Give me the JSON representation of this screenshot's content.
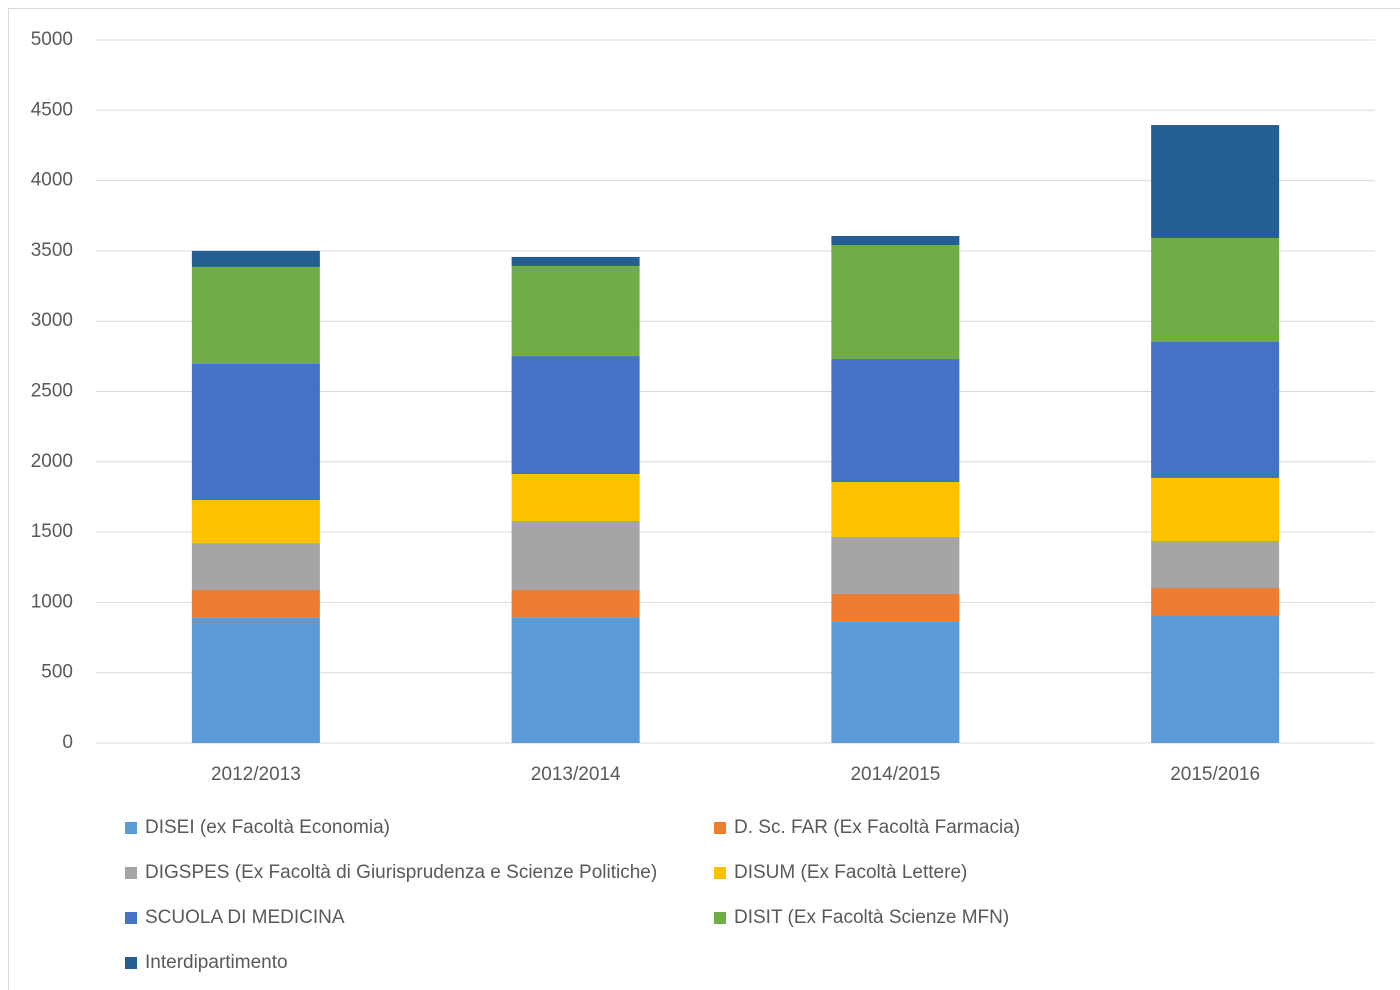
{
  "chart_data": {
    "type": "stacked_bar",
    "categories": [
      "2012/2013",
      "2013/2014",
      "2014/2015",
      "2015/2016"
    ],
    "series": [
      {
        "name": "DISEI (ex Facoltà Economia)",
        "color": "#5b9bd5",
        "values": [
          890,
          895,
          861,
          903
        ]
      },
      {
        "name": "D. Sc. FAR (Ex Facoltà Farmacia)",
        "color": "#ed7d31",
        "values": [
          198,
          193,
          199,
          199
        ]
      },
      {
        "name": "DIGSPES (Ex Facoltà di Giurisprudenza e Scienze Politiche)",
        "color": "#a5a5a5",
        "values": [
          334,
          491,
          405,
          335
        ]
      },
      {
        "name": "DISUM (Ex Facoltà Lettere)",
        "color": "#ffc000",
        "values": [
          306,
          334,
          391,
          448
        ]
      },
      {
        "name": "SCUOLA DI MEDICINA",
        "color": "#4472c4",
        "values": [
          968,
          839,
          875,
          967
        ]
      },
      {
        "name": "DISIT (Ex Facoltà Scienze MFN)",
        "color": "#70ad47",
        "values": [
          690,
          641,
          811,
          740
        ]
      },
      {
        "name": "Interdipartimento",
        "color": "#255e91",
        "values": [
          114,
          64,
          64,
          803
        ]
      }
    ],
    "ylim": [
      0,
      5000
    ],
    "yticks": [
      0,
      500,
      1000,
      1500,
      2000,
      2500,
      3000,
      3500,
      4000,
      4500,
      5000
    ],
    "grid": true
  }
}
